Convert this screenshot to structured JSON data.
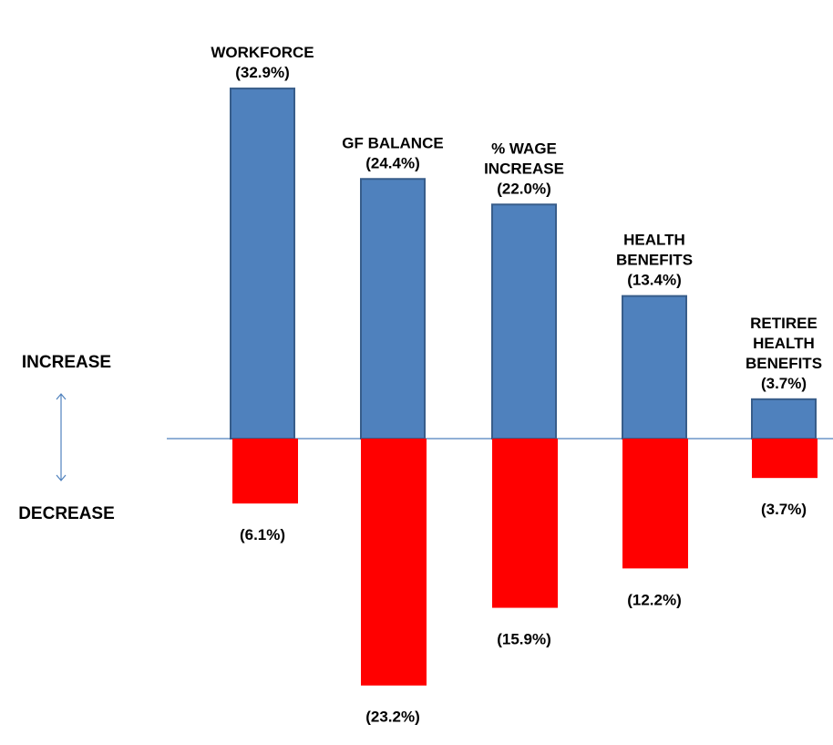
{
  "chart_data": {
    "type": "bar",
    "title": "",
    "xlabel": "",
    "ylabel": "",
    "categories": [
      "WORKFORCE",
      "GF BALANCE",
      "% WAGE INCREASE",
      "HEALTH BENEFITS",
      "RETIREE HEALTH BENEFITS"
    ],
    "series": [
      {
        "values": [
          32.9,
          24.4,
          22.0,
          13.4,
          3.7
        ],
        "labels": [
          "WORKFORCE\n(32.9%)",
          "GF BALANCE\n(24.4%)",
          "% WAGE\nINCREASE\n(22.0%)",
          "HEALTH\nBENEFITS\n(13.4%)",
          "RETIREE\nHEALTH\nBENEFITS\n(3.7%)"
        ]
      },
      {
        "values": [
          -6.1,
          -23.2,
          -15.9,
          -12.2,
          -3.7
        ],
        "labels": [
          "(6.1%)",
          "(23.2%)",
          "(15.9%)",
          "(12.2%)",
          "(3.7%)"
        ]
      }
    ],
    "ylim": [
      -24.7,
      33.5
    ],
    "axis_labels": {
      "increase": "INCREASE",
      "decrease": "DECREASE"
    },
    "grid": false,
    "legend": "none",
    "colors": {
      "increase_fill": "#4f81bd",
      "increase_stroke": "#385d8a",
      "decrease_fill": "#ff0000",
      "baseline": "#4f81bd",
      "arrow": "#4f81bd"
    }
  }
}
